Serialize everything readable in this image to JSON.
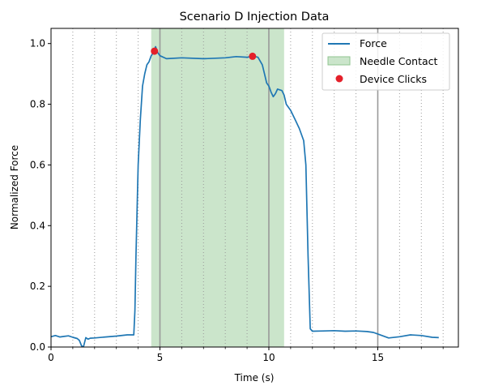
{
  "chart_data": {
    "type": "line",
    "title": "Scenario D Injection Data",
    "xlabel": "Time (s)",
    "ylabel": "Normalized Force",
    "xlim": [
      0,
      18.7
    ],
    "ylim": [
      0,
      1.05
    ],
    "x_major_ticks": [
      0,
      5,
      10,
      15
    ],
    "x_tick_labels": [
      "0",
      "5",
      "10",
      "15"
    ],
    "y_major_ticks": [
      0.0,
      0.2,
      0.4,
      0.6,
      0.8,
      1.0
    ],
    "y_tick_labels": [
      "0.0",
      "0.2",
      "0.4",
      "0.6",
      "0.8",
      "1.0"
    ],
    "minor_dotted_gridlines_x": [
      1,
      2,
      3,
      4,
      6,
      7,
      8,
      9,
      11,
      12,
      13,
      14,
      16,
      17,
      18
    ],
    "major_solid_gridlines_x": [
      5,
      10,
      15
    ],
    "legend_position": "top-right",
    "series": [
      {
        "name": "Force",
        "color": "#1f77b4",
        "type": "line",
        "x": [
          0.0,
          0.2,
          0.4,
          0.6,
          0.8,
          1.0,
          1.2,
          1.3,
          1.4,
          1.45,
          1.5,
          1.55,
          1.6,
          1.7,
          1.8,
          2.0,
          2.5,
          3.0,
          3.5,
          3.8,
          3.85,
          3.9,
          4.0,
          4.1,
          4.2,
          4.3,
          4.4,
          4.5,
          4.6,
          4.7,
          4.8,
          4.9,
          5.0,
          5.3,
          6.0,
          7.0,
          8.0,
          8.5,
          9.0,
          9.3,
          9.5,
          9.7,
          9.8,
          9.9,
          10.0,
          10.1,
          10.2,
          10.3,
          10.4,
          10.6,
          10.7,
          10.8,
          11.0,
          11.2,
          11.4,
          11.6,
          11.7,
          11.8,
          11.9,
          12.0,
          12.5,
          13.0,
          13.5,
          14.0,
          14.5,
          14.8,
          15.0,
          15.5,
          16.0,
          16.5,
          17.0,
          17.5,
          17.8
        ],
        "y": [
          0.034,
          0.038,
          0.033,
          0.035,
          0.037,
          0.032,
          0.028,
          0.022,
          0.004,
          0.002,
          0.003,
          0.018,
          0.031,
          0.026,
          0.029,
          0.03,
          0.033,
          0.036,
          0.04,
          0.04,
          0.12,
          0.3,
          0.6,
          0.75,
          0.86,
          0.9,
          0.93,
          0.94,
          0.96,
          0.97,
          0.99,
          0.97,
          0.96,
          0.95,
          0.953,
          0.95,
          0.953,
          0.957,
          0.955,
          0.958,
          0.955,
          0.93,
          0.9,
          0.87,
          0.86,
          0.84,
          0.825,
          0.835,
          0.85,
          0.845,
          0.83,
          0.8,
          0.78,
          0.75,
          0.72,
          0.68,
          0.6,
          0.3,
          0.06,
          0.052,
          0.053,
          0.054,
          0.052,
          0.053,
          0.051,
          0.048,
          0.043,
          0.03,
          0.034,
          0.04,
          0.038,
          0.032,
          0.031
        ]
      },
      {
        "name": "Needle Contact",
        "color": "#a9d3a9",
        "type": "area",
        "x_range": [
          4.6,
          10.7
        ]
      },
      {
        "name": "Device Clicks",
        "color": "#e4202a",
        "type": "scatter",
        "x": [
          4.75,
          9.25
        ],
        "y": [
          0.975,
          0.958
        ]
      }
    ]
  }
}
